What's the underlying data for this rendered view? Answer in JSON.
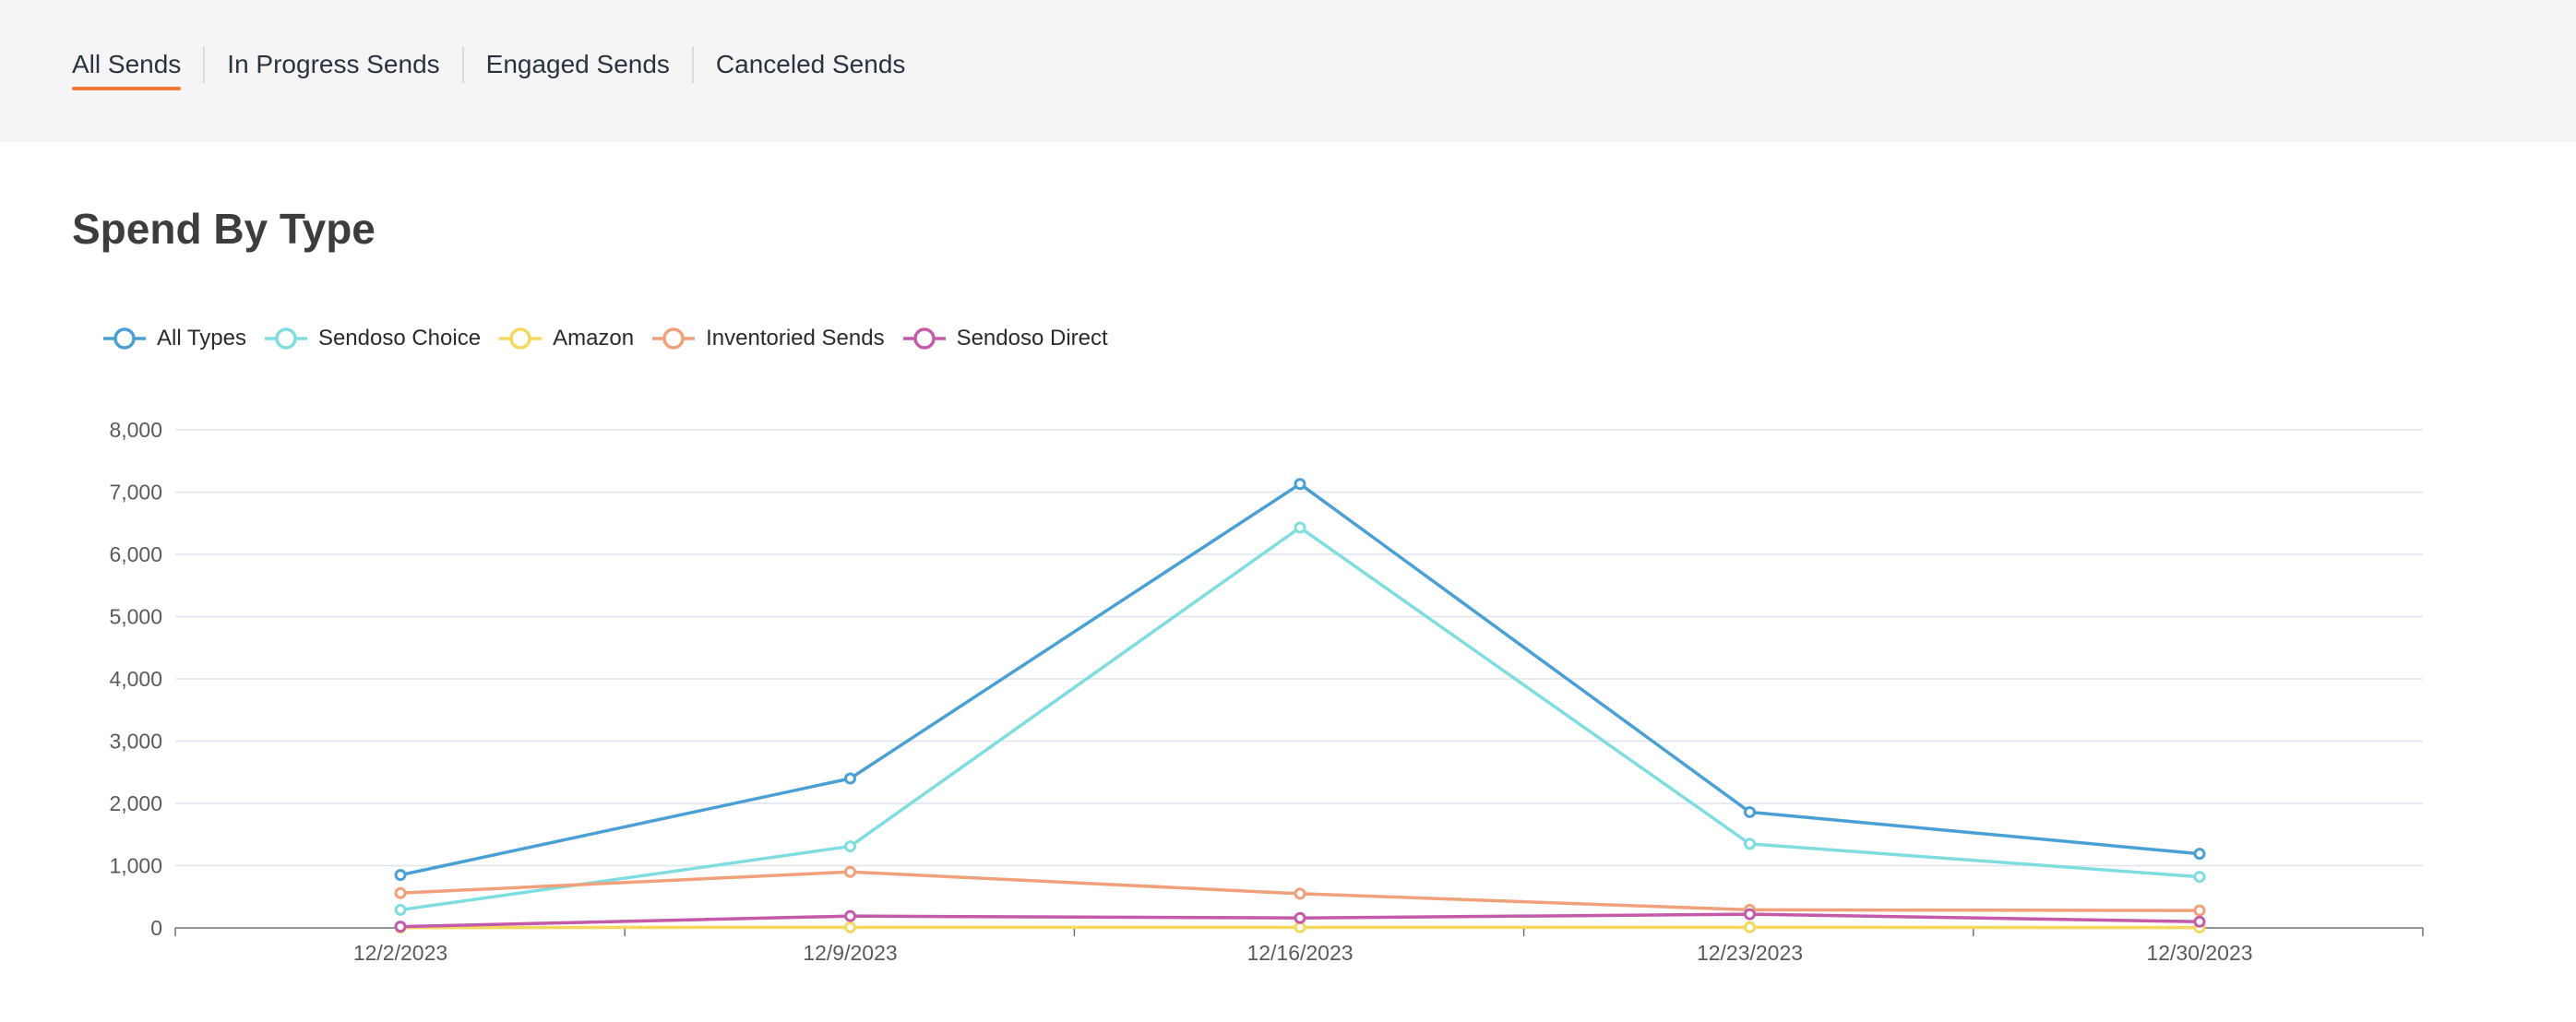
{
  "tabs": [
    {
      "label": "All Sends",
      "active": true
    },
    {
      "label": "In Progress Sends",
      "active": false
    },
    {
      "label": "Engaged Sends",
      "active": false
    },
    {
      "label": "Canceled Sends",
      "active": false
    }
  ],
  "page_title": "Spend By Type",
  "chart_data": {
    "type": "line",
    "title": "",
    "xlabel": "",
    "ylabel": "",
    "legend_position": "top-left",
    "grid": true,
    "ylim": [
      0,
      8000
    ],
    "yticks": [
      "0",
      "1,000",
      "2,000",
      "3,000",
      "4,000",
      "5,000",
      "6,000",
      "7,000",
      "8,000"
    ],
    "yticks_values": [
      0,
      1000,
      2000,
      3000,
      4000,
      5000,
      6000,
      7000,
      8000
    ],
    "categories": [
      "12/2/2023",
      "12/9/2023",
      "12/16/2023",
      "12/23/2023",
      "12/30/2023"
    ],
    "series": [
      {
        "name": "All Types",
        "color": "#4a9fd5",
        "values": [
          850,
          2400,
          7130,
          1860,
          1190
        ]
      },
      {
        "name": "Sendoso Choice",
        "color": "#7fdde0",
        "values": [
          290,
          1310,
          6430,
          1350,
          820
        ]
      },
      {
        "name": "Amazon",
        "color": "#f5d85e",
        "values": [
          5,
          10,
          10,
          10,
          5
        ]
      },
      {
        "name": "Inventoried Sends",
        "color": "#f0a07a",
        "values": [
          560,
          900,
          550,
          290,
          280
        ]
      },
      {
        "name": "Sendoso Direct",
        "color": "#c45aaa",
        "values": [
          20,
          190,
          160,
          220,
          100
        ]
      }
    ]
  }
}
